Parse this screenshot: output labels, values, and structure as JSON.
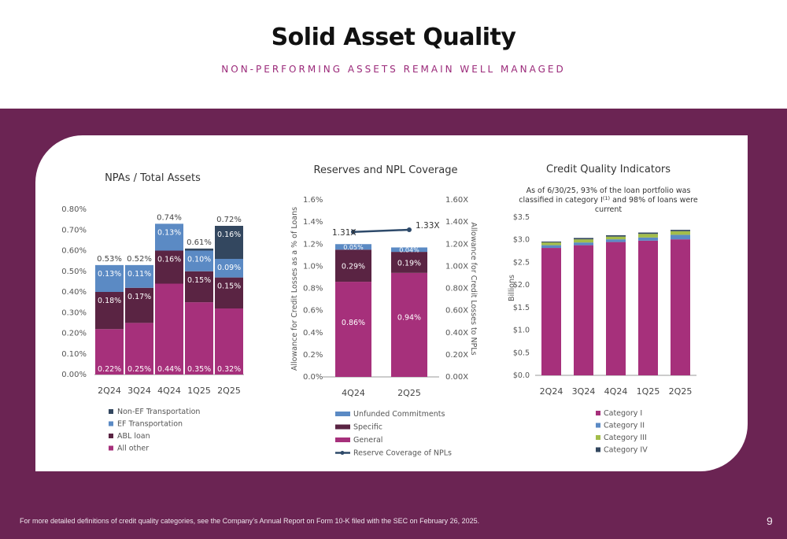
{
  "slide": {
    "title": "Solid Asset Quality",
    "subtitle": "NON-PERFORMING ASSETS REMAIN WELL MANAGED",
    "footnote": "For more detailed definitions of credit quality categories, see the Company’s Annual Report on Form 10-K filed with the SEC on February 26, 2025.",
    "page_number": "9"
  },
  "colors": {
    "band": "#6b2453",
    "all_other": "#a6307b",
    "abl": "#5a2443",
    "ef": "#5b8ac4",
    "non_ef": "#33475f",
    "cat1": "#a6307b",
    "cat2": "#5b8ac4",
    "cat3": "#a3bd4a",
    "cat4": "#33475f",
    "coverage_line": "#2e4a6a"
  },
  "chart_data": [
    {
      "type": "bar",
      "stacked": true,
      "title": "NPAs / Total Assets",
      "categories": [
        "2Q24",
        "3Q24",
        "4Q24",
        "1Q25",
        "2Q25"
      ],
      "ylim": [
        0,
        0.8
      ],
      "yticks": [
        "0.00%",
        "0.10%",
        "0.20%",
        "0.30%",
        "0.40%",
        "0.50%",
        "0.60%",
        "0.70%",
        "0.80%"
      ],
      "series": [
        {
          "name": "All other",
          "values": [
            0.22,
            0.25,
            0.44,
            0.35,
            0.32
          ],
          "labels": [
            "0.22%",
            "0.25%",
            "0.44%",
            "0.35%",
            "0.32%"
          ]
        },
        {
          "name": "ABL loan",
          "values": [
            0.18,
            0.17,
            0.16,
            0.15,
            0.15
          ],
          "labels": [
            "0.18%",
            "0.17%",
            "0.16%",
            "0.15%",
            "0.15%"
          ]
        },
        {
          "name": "EF Transportation",
          "values": [
            0.13,
            0.11,
            0.13,
            0.1,
            0.09
          ],
          "labels": [
            "0.13%",
            "0.11%",
            "0.13%",
            "0.10%",
            "0.09%"
          ]
        },
        {
          "name": "Non-EF Transportation",
          "values": [
            0,
            0,
            0,
            0.01,
            0.16
          ],
          "labels": [
            "",
            "",
            "",
            "",
            "0.16%"
          ]
        }
      ],
      "totals": [
        "0.53%",
        "0.52%",
        "0.74%",
        "0.61%",
        "0.72%"
      ],
      "legend": [
        "Non-EF Transportation",
        "EF Transportation",
        "ABL loan",
        "All other"
      ]
    },
    {
      "type": "bar",
      "stacked": true,
      "title": "Reserves and NPL Coverage",
      "categories": [
        "4Q24",
        "2Q25"
      ],
      "ylabel": "Allowance for Credit Losses as a % of Loans",
      "y2label": "Allowance for Credit Losses to NPLs",
      "ylim": [
        0,
        1.6
      ],
      "yticks": [
        "0.0%",
        "0.2%",
        "0.4%",
        "0.6%",
        "0.8%",
        "1.0%",
        "1.2%",
        "1.4%",
        "1.6%"
      ],
      "y2ticks": [
        "0.00X",
        "0.20X",
        "0.40X",
        "0.60X",
        "0.80X",
        "1.00X",
        "1.20X",
        "1.40X",
        "1.60X"
      ],
      "series": [
        {
          "name": "General",
          "values": [
            0.86,
            0.94
          ],
          "labels": [
            "0.86%",
            "0.94%"
          ]
        },
        {
          "name": "Specific",
          "values": [
            0.29,
            0.19
          ],
          "labels": [
            "0.29%",
            "0.19%"
          ]
        },
        {
          "name": "Unfunded Commitments",
          "values": [
            0.05,
            0.04
          ],
          "labels": [
            "0.05%",
            "0.04%"
          ]
        }
      ],
      "line": {
        "name": "Reserve Coverage of NPLs",
        "values": [
          1.31,
          1.33
        ],
        "labels": [
          "1.31X",
          "1.33X"
        ]
      },
      "legend": [
        "Unfunded Commitments",
        "Specific",
        "General",
        "Reserve Coverage of NPLs"
      ]
    },
    {
      "type": "bar",
      "stacked": true,
      "title": "Credit Quality Indicators",
      "subtitle_lines": [
        "As of 6/30/25, 93% of the loan portfolio was",
        "classified in category I",
        "and 98% of loans were",
        "current"
      ],
      "footnote_marker": "(1)",
      "categories": [
        "2Q24",
        "3Q24",
        "4Q24",
        "1Q25",
        "2Q25"
      ],
      "ylabel": "Billions",
      "ylim": [
        0,
        3.5
      ],
      "yticks": [
        "$0.0",
        "$0.5",
        "$1.0",
        "$1.5",
        "$2.0",
        "$2.5",
        "$3.0",
        "$3.5"
      ],
      "series": [
        {
          "name": "Category I",
          "values": [
            2.82,
            2.88,
            2.95,
            2.98,
            3.01
          ]
        },
        {
          "name": "Category II",
          "values": [
            0.06,
            0.06,
            0.06,
            0.07,
            0.1
          ]
        },
        {
          "name": "Category III",
          "values": [
            0.06,
            0.07,
            0.06,
            0.08,
            0.08
          ]
        },
        {
          "name": "Category IV",
          "values": [
            0.02,
            0.03,
            0.03,
            0.03,
            0.03
          ]
        }
      ],
      "legend": [
        "Category I",
        "Category II",
        "Category III",
        "Category IV"
      ]
    }
  ]
}
